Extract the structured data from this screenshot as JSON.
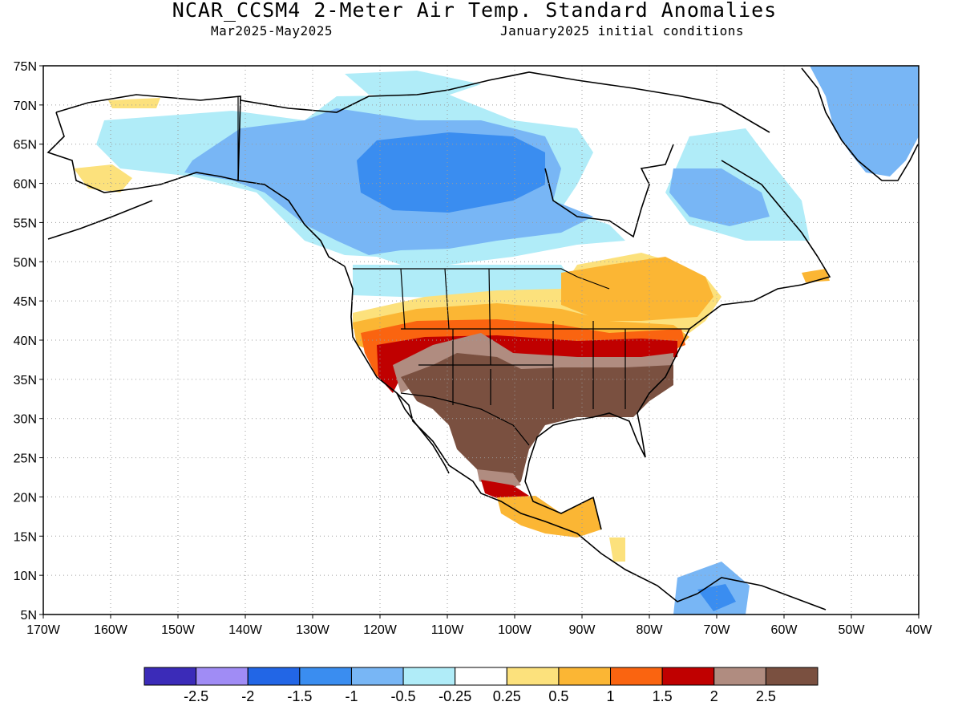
{
  "header": {
    "title": "NCAR_CCSM4 2-Meter Air Temp. Standard Anomalies",
    "period": "Mar2025-May2025",
    "init": "January2025 initial conditions"
  },
  "map": {
    "lon_range": [
      -170,
      -40
    ],
    "lat_range": [
      5,
      75
    ],
    "lat_labels": [
      "75N",
      "70N",
      "65N",
      "60N",
      "55N",
      "50N",
      "45N",
      "40N",
      "35N",
      "30N",
      "25N",
      "20N",
      "15N",
      "10N",
      "5N"
    ],
    "lon_labels": [
      "170W",
      "160W",
      "150W",
      "140W",
      "130W",
      "120W",
      "110W",
      "100W",
      "90W",
      "80W",
      "70W",
      "60W",
      "50W",
      "40W"
    ],
    "grid": "dotted"
  },
  "colorbar": {
    "colors": [
      "#3b2bb8",
      "#a08cf5",
      "#2266e6",
      "#3a8df0",
      "#78b6f5",
      "#b0ecf8",
      "#ffffff",
      "#fce17c",
      "#fbb634",
      "#fa6410",
      "#c00000",
      "#b08c80",
      "#7a5040"
    ],
    "labels": [
      "-2.5",
      "-2",
      "-1.5",
      "-1",
      "-0.5",
      "-0.25",
      "0.25",
      "0.5",
      "1",
      "1.5",
      "2",
      "2.5"
    ]
  },
  "anomaly_regions": [
    {
      "name": "northern-canada-cool",
      "color": "#78b6f5"
    },
    {
      "name": "hudson-bay-cool",
      "color": "#3a8df0"
    },
    {
      "name": "alaska-arctic-light-cool",
      "color": "#b0ecf8"
    },
    {
      "name": "greenland-cool",
      "color": "#78b6f5"
    },
    {
      "name": "great-lakes-warm",
      "color": "#fbb634"
    },
    {
      "name": "central-us-band-warm",
      "color": "#fa6410"
    },
    {
      "name": "mid-us-band-strong-warm",
      "color": "#c00000"
    },
    {
      "name": "southern-us-mexico-very-warm",
      "color": "#7a5040"
    },
    {
      "name": "central-america-cool",
      "color": "#78b6f5"
    }
  ]
}
